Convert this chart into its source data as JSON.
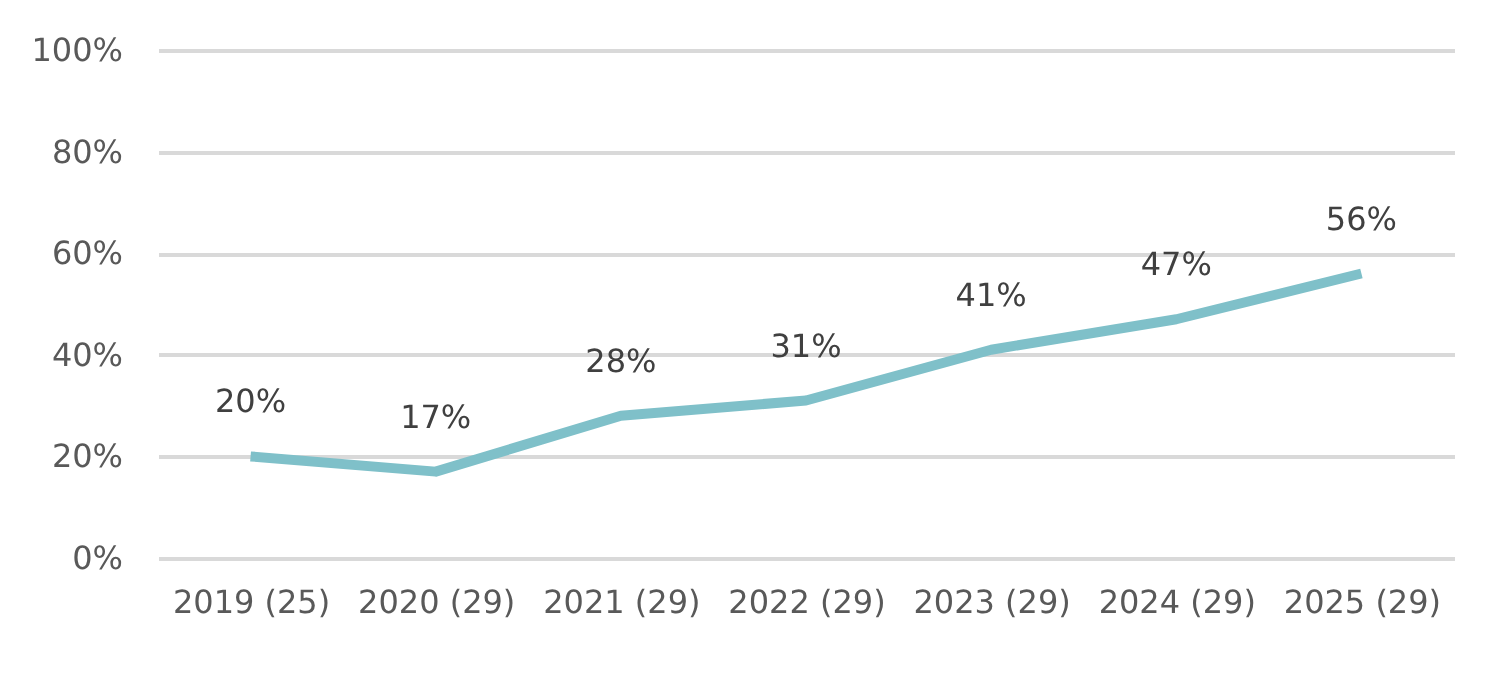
{
  "chart_data": {
    "type": "line",
    "categories": [
      "2019 (25)",
      "2020 (29)",
      "2021 (29)",
      "2022 (29)",
      "2023 (29)",
      "2024 (29)",
      "2025 (29)"
    ],
    "values": [
      20,
      17,
      28,
      31,
      41,
      47,
      56
    ],
    "color": "#7fc0c9",
    "value_labels": [
      "20%",
      "17%",
      "28%",
      "31%",
      "41%",
      "47%",
      "56%"
    ],
    "ylim": [
      0,
      100
    ],
    "yticks": [
      {
        "value": 0,
        "label": "0%"
      },
      {
        "value": 20,
        "label": "20%"
      },
      {
        "value": 40,
        "label": "40%"
      },
      {
        "value": 60,
        "label": "60%"
      },
      {
        "value": 80,
        "label": "80%"
      },
      {
        "value": 100,
        "label": "100%"
      }
    ],
    "grid": "y",
    "marker": "none",
    "line_style": "solid"
  }
}
